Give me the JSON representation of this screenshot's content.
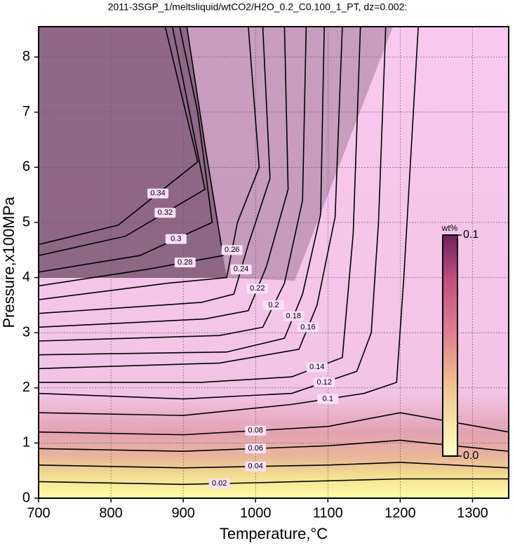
{
  "chart_data": {
    "type": "contour",
    "title": "2011-3SGP_1/meltsliquid/wtCO2/H2O_0.2_C0.100_1_PT, dz=0.002:",
    "xlabel": "Temperature,°C",
    "ylabel": "Pressure,x100MPa",
    "xlim": [
      700,
      1350
    ],
    "ylim": [
      0,
      8.55
    ],
    "xticks": [
      700,
      800,
      900,
      1000,
      1100,
      1200,
      1300
    ],
    "yticks": [
      0,
      1,
      2,
      3,
      4,
      5,
      6,
      7,
      8
    ],
    "grid": true,
    "line_color": "#000000",
    "colorbar": {
      "label": "wt%",
      "ticks": [
        {
          "value": 0,
          "label": "0.0"
        },
        0.1
      ]
    },
    "contours": [
      {
        "level": 0.02,
        "x": [
          700,
          900,
          1000,
          1200,
          1350
        ],
        "y": [
          0.3,
          0.25,
          0.28,
          0.35,
          0.35
        ]
      },
      {
        "level": 0.04,
        "x": [
          700,
          900,
          1100,
          1200,
          1350
        ],
        "y": [
          0.6,
          0.55,
          0.6,
          0.65,
          0.55
        ]
      },
      {
        "level": 0.06,
        "x": [
          700,
          900,
          1100,
          1200,
          1350
        ],
        "y": [
          0.9,
          0.85,
          0.95,
          1.05,
          0.85
        ]
      },
      {
        "level": 0.08,
        "x": [
          700,
          900,
          1100,
          1200,
          1350
        ],
        "y": [
          1.2,
          1.15,
          1.3,
          1.55,
          1.2
        ]
      },
      {
        "level": 0.1,
        "x": [
          700,
          900,
          1050,
          1150,
          1195,
          1205,
          1225
        ],
        "y": [
          1.55,
          1.5,
          1.7,
          1.9,
          2.1,
          4,
          8.55
        ]
      },
      {
        "level": 0.12,
        "x": [
          700,
          900,
          1050,
          1140,
          1160,
          1170,
          1180
        ],
        "y": [
          1.9,
          1.8,
          1.9,
          2.3,
          3,
          5,
          8.55
        ]
      },
      {
        "level": 0.14,
        "x": [
          700,
          925,
          1050,
          1120,
          1135,
          1145
        ],
        "y": [
          2.1,
          2.1,
          2.2,
          2.55,
          4.8,
          8.55
        ]
      },
      {
        "level": 0.16,
        "x": [
          700,
          950,
          1060,
          1085,
          1110,
          1120
        ],
        "y": [
          2.35,
          2.45,
          2.7,
          3.5,
          5.1,
          8.55
        ]
      },
      {
        "level": 0.18,
        "x": [
          700,
          960,
          1040,
          1065,
          1090,
          1095
        ],
        "y": [
          2.6,
          2.65,
          2.9,
          3.7,
          5.15,
          8.55
        ]
      },
      {
        "level": 0.2,
        "x": [
          700,
          950,
          1010,
          1040,
          1065,
          1070
        ],
        "y": [
          2.85,
          2.95,
          3.1,
          3.9,
          5.4,
          8.55
        ]
      },
      {
        "level": 0.22,
        "x": [
          700,
          930,
          990,
          1015,
          1045,
          1040
        ],
        "y": [
          3.1,
          3.25,
          3.4,
          4.2,
          5.6,
          8.55
        ]
      },
      {
        "level": 0.24,
        "x": [
          700,
          925,
          970,
          990,
          1020,
          1010
        ],
        "y": [
          3.35,
          3.55,
          3.7,
          4.6,
          5.8,
          8.55
        ]
      },
      {
        "level": 0.26,
        "x": [
          700,
          880,
          960,
          975,
          1005,
          990
        ],
        "y": [
          3.6,
          3.9,
          4.0,
          5,
          6.0,
          8.55
        ]
      },
      {
        "level": 0.28,
        "x": [
          700,
          850,
          955,
          930,
          905
        ],
        "y": [
          3.85,
          4.15,
          4.4,
          6.4,
          8.55
        ]
      },
      {
        "level": 0.3,
        "x": [
          700,
          840,
          940,
          920,
          895
        ],
        "y": [
          4.1,
          4.4,
          5.0,
          7,
          8.55
        ]
      },
      {
        "level": 0.32,
        "x": [
          700,
          820,
          930,
          885
        ],
        "y": [
          4.4,
          4.75,
          5.6,
          8.55
        ]
      },
      {
        "level": 0.34,
        "x": [
          700,
          810,
          920,
          875
        ],
        "y": [
          4.6,
          4.95,
          6.1,
          8.55
        ]
      }
    ]
  }
}
